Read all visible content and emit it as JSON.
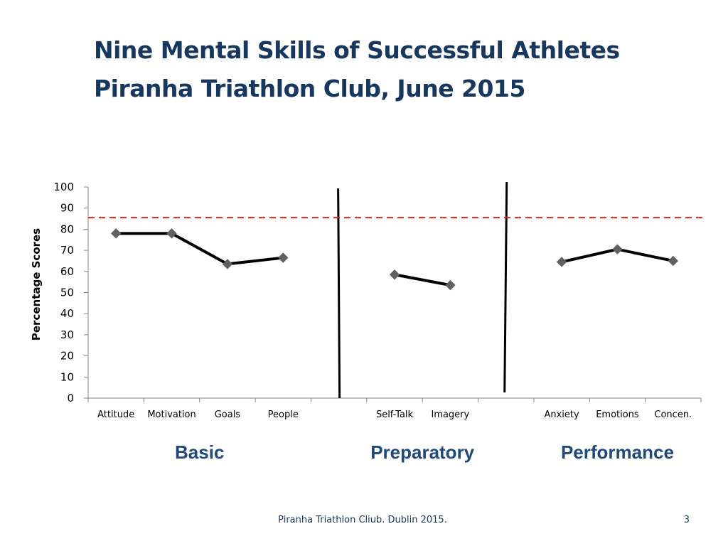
{
  "slide": {
    "title_line1": "Nine Mental Skills of Successful Athletes",
    "title_line2": "Piranha Triathlon Club, June 2015",
    "footer": "Piranha Triathlon Cliub. Dublin 2015.",
    "page_number": "3"
  },
  "chart_data": {
    "type": "line",
    "ylabel": "Percentage Scores",
    "ylim": [
      0,
      100
    ],
    "yticks": [
      0,
      10,
      20,
      30,
      40,
      50,
      60,
      70,
      80,
      90,
      100
    ],
    "categories": [
      "Attitude",
      "Motivation",
      "Goals",
      "People",
      "",
      "Self-Talk",
      "Imagery",
      "",
      "Anxiety",
      "Emotions",
      "Concen."
    ],
    "series": [
      {
        "values": [
          78,
          78,
          63.5,
          66.5,
          null,
          58.5,
          53.5,
          null,
          64.5,
          70.5,
          65
        ]
      }
    ],
    "reference_line": {
      "value": 85.5,
      "style": "dashed",
      "color": "#e02020"
    },
    "groups": [
      {
        "label": "Basic",
        "color": "#1f497d"
      },
      {
        "label": "Preparatory",
        "color": "#1f497d"
      },
      {
        "label": "Performance",
        "color": "#1f497d"
      }
    ],
    "line_color": "#000000",
    "marker_color": "#606060",
    "grid": false
  }
}
